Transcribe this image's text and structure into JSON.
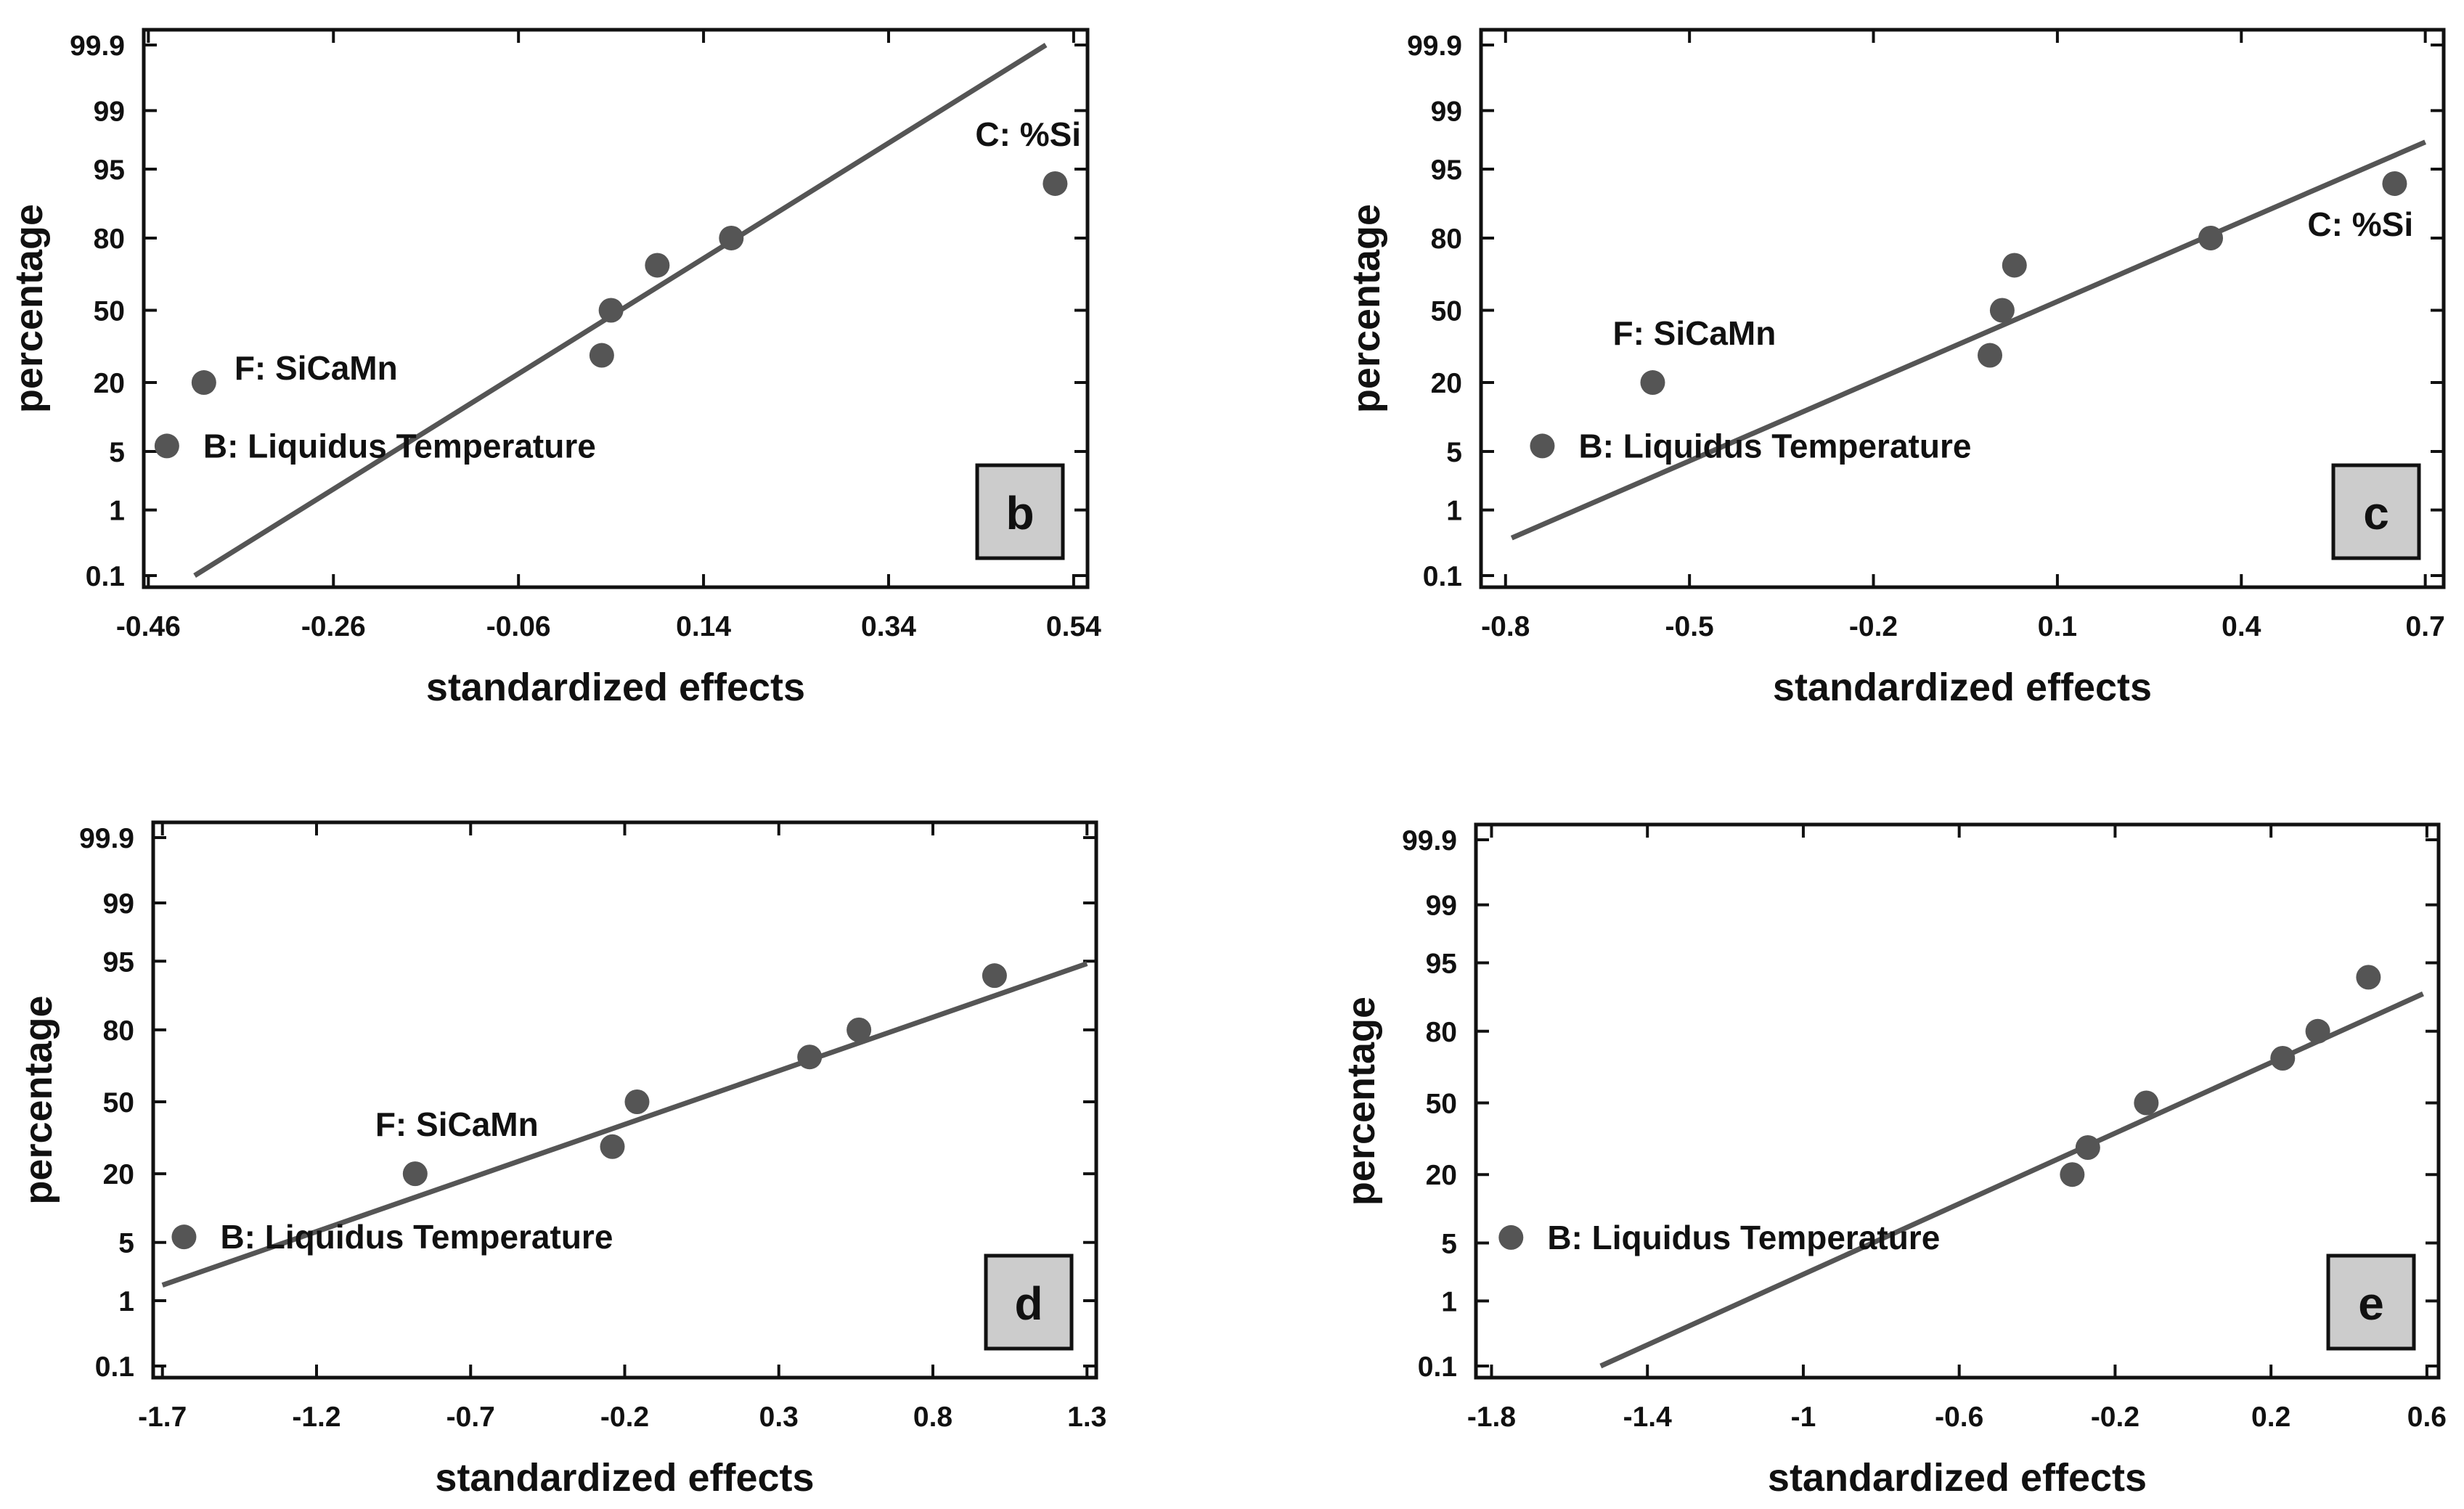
{
  "figure": {
    "colors": {
      "axis": "#111111",
      "point": "#555555",
      "line": "#555555",
      "panel_label_bg": "#cccccc"
    }
  },
  "chart_data": [
    {
      "id": "b",
      "type": "scatter",
      "subtype": "normal-probability-plot",
      "panel_label": "b",
      "xlabel": "standardized effects",
      "ylabel": "percentage",
      "x_ticks": [
        -0.46,
        -0.26,
        -0.06,
        0.14,
        0.34,
        0.54
      ],
      "x_tick_labels": [
        "-0.46",
        "-0.26",
        "-0.06",
        "0.14",
        "0.34",
        "0.54"
      ],
      "xlim": [
        -0.465,
        0.555
      ],
      "y_tick_labels": [
        "0.1",
        "1",
        "5",
        "20",
        "50",
        "80",
        "95",
        "99",
        "99.9"
      ],
      "points": [
        {
          "x": -0.44,
          "y": 5.7,
          "label": "B: Liquidus Temperature"
        },
        {
          "x": -0.4,
          "y": 20.0,
          "label": "F: SiCaMn"
        },
        {
          "x": 0.03,
          "y": 30.0,
          "label": ""
        },
        {
          "x": 0.04,
          "y": 50.0,
          "label": ""
        },
        {
          "x": 0.09,
          "y": 70.0,
          "label": ""
        },
        {
          "x": 0.17,
          "y": 80.0,
          "label": ""
        },
        {
          "x": 0.52,
          "y": 93.0,
          "label": "C: %Si"
        }
      ],
      "fit_line": {
        "x": [
          -0.41,
          0.51
        ],
        "y_percent": [
          0.1,
          99.9
        ]
      }
    },
    {
      "id": "c",
      "type": "scatter",
      "subtype": "normal-probability-plot",
      "panel_label": "c",
      "xlabel": "standardized effects",
      "ylabel": "percentage",
      "x_ticks": [
        -0.8,
        -0.5,
        -0.2,
        0.1,
        0.4,
        0.7
      ],
      "x_tick_labels": [
        "-0.8",
        "-0.5",
        "-0.2",
        "0.1",
        "0.4",
        "0.7"
      ],
      "xlim": [
        -0.84,
        0.73
      ],
      "y_tick_labels": [
        "0.1",
        "1",
        "5",
        "20",
        "50",
        "80",
        "95",
        "99",
        "99.9"
      ],
      "points": [
        {
          "x": -0.74,
          "y": 5.7,
          "label": "B: Liquidus Temperature"
        },
        {
          "x": -0.56,
          "y": 20.0,
          "label": "F: SiCaMn"
        },
        {
          "x": -0.01,
          "y": 30.0,
          "label": ""
        },
        {
          "x": 0.01,
          "y": 50.0,
          "label": ""
        },
        {
          "x": 0.03,
          "y": 70.0,
          "label": ""
        },
        {
          "x": 0.35,
          "y": 80.0,
          "label": ""
        },
        {
          "x": 0.65,
          "y": 93.0,
          "label": "C: %Si"
        }
      ],
      "fit_line": {
        "x": [
          -0.79,
          0.7
        ],
        "y_percent": [
          0.4,
          97.5
        ]
      }
    },
    {
      "id": "d",
      "type": "scatter",
      "subtype": "normal-probability-plot",
      "panel_label": "d",
      "xlabel": "standardized effects",
      "ylabel": "percentage",
      "x_ticks": [
        -1.7,
        -1.2,
        -0.7,
        -0.2,
        0.3,
        0.8,
        1.3
      ],
      "x_tick_labels": [
        "-1.7",
        "-1.2",
        "-0.7",
        "-0.2",
        "0.3",
        "0.8",
        "1.3"
      ],
      "xlim": [
        -1.73,
        1.33
      ],
      "y_tick_labels": [
        "0.1",
        "1",
        "5",
        "20",
        "50",
        "80",
        "95",
        "99",
        "99.9"
      ],
      "points": [
        {
          "x": -1.63,
          "y": 5.7,
          "label": "B: Liquidus Temperature"
        },
        {
          "x": -0.88,
          "y": 20.0,
          "label": "F: SiCaMn"
        },
        {
          "x": -0.24,
          "y": 30.0,
          "label": ""
        },
        {
          "x": -0.16,
          "y": 50.0,
          "label": ""
        },
        {
          "x": 0.4,
          "y": 70.0,
          "label": ""
        },
        {
          "x": 0.56,
          "y": 80.0,
          "label": ""
        },
        {
          "x": 1.0,
          "y": 93.0,
          "label": ""
        }
      ],
      "fit_line": {
        "x": [
          -1.7,
          1.3
        ],
        "y_percent": [
          1.6,
          94.7
        ]
      }
    },
    {
      "id": "e",
      "type": "scatter",
      "subtype": "normal-probability-plot",
      "panel_label": "e",
      "xlabel": "standardized effects",
      "ylabel": "percentage",
      "x_ticks": [
        -1.8,
        -1.4,
        -1,
        -0.6,
        -0.2,
        0.2,
        0.6
      ],
      "x_tick_labels": [
        "-1.8",
        "-1.4",
        "-1",
        "-0.6",
        "-0.2",
        "0.2",
        "0.6"
      ],
      "xlim": [
        -1.84,
        0.63
      ],
      "y_tick_labels": [
        "0.1",
        "1",
        "5",
        "20",
        "50",
        "80",
        "95",
        "99",
        "99.9"
      ],
      "points": [
        {
          "x": -1.75,
          "y": 5.7,
          "label": "B: Liquidus Temperature"
        },
        {
          "x": -0.31,
          "y": 20.0,
          "label": ""
        },
        {
          "x": -0.27,
          "y": 30.0,
          "label": ""
        },
        {
          "x": -0.12,
          "y": 50.0,
          "label": ""
        },
        {
          "x": 0.23,
          "y": 70.0,
          "label": ""
        },
        {
          "x": 0.32,
          "y": 80.0,
          "label": ""
        },
        {
          "x": 0.45,
          "y": 93.0,
          "label": ""
        }
      ],
      "fit_line": {
        "x": [
          -1.52,
          0.59
        ],
        "y_percent": [
          0.1,
          90.0
        ]
      }
    }
  ]
}
